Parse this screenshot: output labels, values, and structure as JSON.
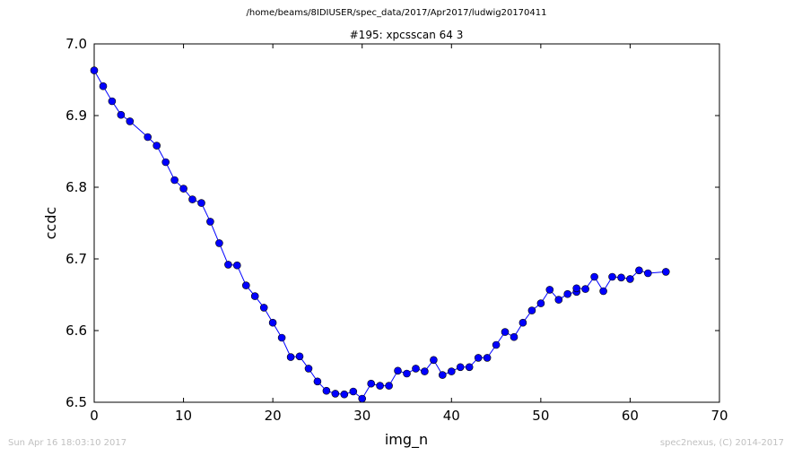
{
  "figure": {
    "suptitle": "/home/beams/8IDIUSER/spec_data/2017/Apr2017/ludwig20170411",
    "footer_left": "Sun Apr 16 18:03:10 2017",
    "footer_right": "spec2nexus, (C) 2014-2017"
  },
  "chart_data": {
    "type": "line",
    "title": "#195: xpcsscan 64 3",
    "xlabel": "img_n",
    "ylabel": "ccdc",
    "xlim": [
      0,
      70
    ],
    "ylim": [
      6.5,
      7.0
    ],
    "xticks": [
      0,
      10,
      20,
      30,
      40,
      50,
      60,
      70
    ],
    "yticks": [
      6.5,
      6.6,
      6.7,
      6.8,
      6.9,
      7.0
    ],
    "ytick_labels": [
      "6.5",
      "6.6",
      "6.7",
      "6.8",
      "6.9",
      "7.0"
    ],
    "grid": false,
    "marker": "circle",
    "color": "#0000ff",
    "series": [
      {
        "x": [
          0,
          1,
          2,
          3,
          4,
          6,
          7,
          8,
          9,
          10,
          11,
          12,
          13,
          14,
          15,
          16,
          17,
          18,
          19,
          20,
          21,
          22,
          23,
          24,
          25,
          26,
          27,
          28,
          29,
          30,
          31,
          32,
          33,
          34,
          35,
          36,
          37,
          38,
          39,
          40,
          41,
          42,
          43,
          44,
          45,
          46,
          47,
          48,
          49,
          50,
          51,
          52,
          53,
          54,
          54,
          55,
          56,
          57,
          58,
          59,
          60,
          61,
          62,
          64
        ],
        "y": [
          6.963,
          6.941,
          6.92,
          6.901,
          6.892,
          6.87,
          6.858,
          6.835,
          6.81,
          6.798,
          6.783,
          6.778,
          6.752,
          6.722,
          6.692,
          6.691,
          6.663,
          6.648,
          6.632,
          6.611,
          6.59,
          6.563,
          6.564,
          6.547,
          6.529,
          6.516,
          6.512,
          6.511,
          6.515,
          6.505,
          6.526,
          6.523,
          6.523,
          6.544,
          6.54,
          6.547,
          6.543,
          6.559,
          6.538,
          6.543,
          6.549,
          6.549,
          6.562,
          6.562,
          6.58,
          6.598,
          6.591,
          6.611,
          6.628,
          6.638,
          6.657,
          6.643,
          6.651,
          6.654,
          6.659,
          6.658,
          6.675,
          6.655,
          6.675,
          6.674,
          6.672,
          6.684,
          6.68,
          6.682
        ]
      }
    ]
  }
}
